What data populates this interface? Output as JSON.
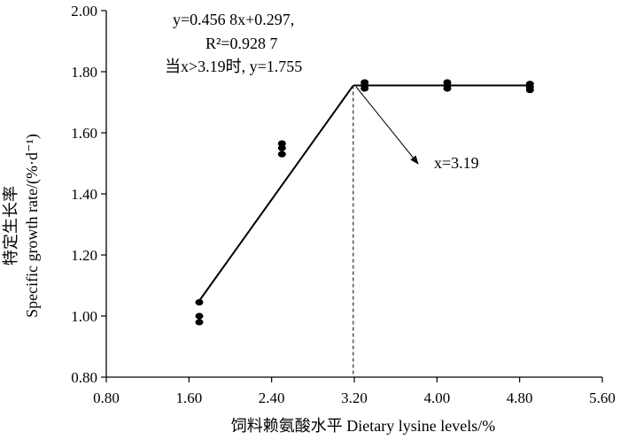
{
  "chart_data": {
    "type": "scatter",
    "xlabel": "饲料赖氨酸水平 Dietary lysine levels/%",
    "ylabel": {
      "line1": "特定生长率",
      "line2": "Specific growth rate/(%·d⁻¹)"
    },
    "xlim": [
      0.8,
      5.6
    ],
    "ylim": [
      0.8,
      2.0
    ],
    "x_ticks": [
      "0.80",
      "1.60",
      "2.40",
      "3.20",
      "4.00",
      "4.80",
      "5.60"
    ],
    "y_ticks": [
      "0.80",
      "1.00",
      "1.20",
      "1.40",
      "1.60",
      "1.80",
      "2.00"
    ],
    "points": [
      {
        "x": 1.7,
        "y": 1.045
      },
      {
        "x": 1.7,
        "y": 1.0
      },
      {
        "x": 1.7,
        "y": 0.98
      },
      {
        "x": 2.5,
        "y": 1.565
      },
      {
        "x": 2.5,
        "y": 1.55
      },
      {
        "x": 2.5,
        "y": 1.53
      },
      {
        "x": 3.3,
        "y": 1.765
      },
      {
        "x": 3.3,
        "y": 1.755
      },
      {
        "x": 3.3,
        "y": 1.745
      },
      {
        "x": 4.1,
        "y": 1.765
      },
      {
        "x": 4.1,
        "y": 1.755
      },
      {
        "x": 4.1,
        "y": 1.745
      },
      {
        "x": 4.9,
        "y": 1.76
      },
      {
        "x": 4.9,
        "y": 1.75
      },
      {
        "x": 4.9,
        "y": 1.74
      }
    ],
    "fit": {
      "segments": [
        {
          "x": [
            1.7,
            3.19
          ],
          "y": [
            1.05,
            1.755
          ]
        },
        {
          "x": [
            3.19,
            4.9
          ],
          "y": [
            1.755,
            1.755
          ]
        }
      ],
      "breakpoint": 3.19,
      "equation_line1": "y=0.456 8x+0.297,",
      "equation_line2": "R²=0.928 7",
      "equation_line3": "当x>3.19时, y=1.755",
      "breakpoint_label": "x=3.19"
    },
    "grid": false,
    "legend": "none"
  }
}
